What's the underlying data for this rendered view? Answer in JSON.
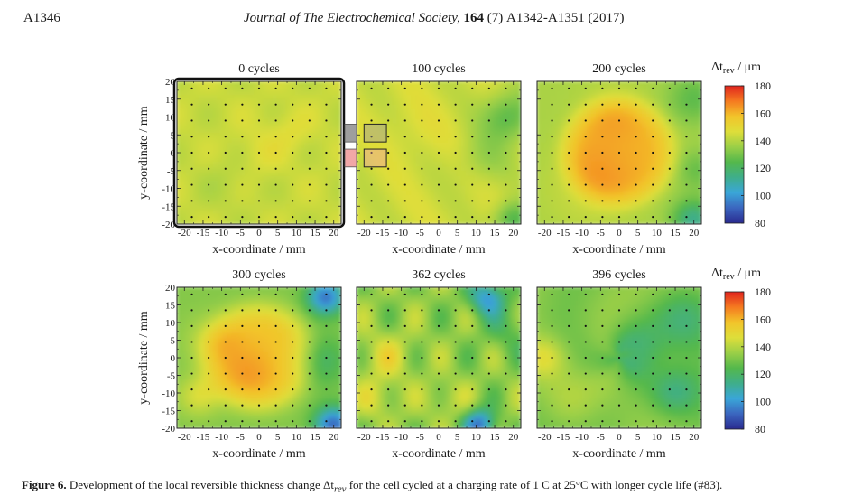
{
  "page": {
    "number": "A1346",
    "journal": "Journal of The Electrochemical Society,",
    "volume": "164",
    "issue": "(7)",
    "pages": "A1342-A1351 (2017)"
  },
  "figure": {
    "label": "Figure 6.",
    "caption_pre": "Development of the local reversible thickness change Δt",
    "caption_sub": "rev",
    "caption_post": " for the cell cycled at a charging rate of 1 C at 25°C with longer cycle life (#83)."
  },
  "chart_data": {
    "type": "heatmap",
    "panels": [
      {
        "title": "0 cycles",
        "state": 0
      },
      {
        "title": "100 cycles",
        "state": 1
      },
      {
        "title": "200 cycles",
        "state": 2
      },
      {
        "title": "300 cycles",
        "state": 3
      },
      {
        "title": "362 cycles",
        "state": 4
      },
      {
        "title": "396 cycles",
        "state": 5
      }
    ],
    "xlabel": "x-coordinate",
    "ylabel": "y-coordinate",
    "unit": "mm",
    "x_ticks": [
      "-20",
      "-15",
      "-10",
      "-5",
      "0",
      "5",
      "10",
      "15",
      "20"
    ],
    "y_ticks": [
      "20",
      "15",
      "10",
      "5",
      "0",
      "-5",
      "-10",
      "-15",
      "-20"
    ],
    "xlim": [
      -22,
      22
    ],
    "ylim": [
      -20,
      20
    ],
    "colorbar": {
      "label": "Δt",
      "label_sub": "rev",
      "label_unit": "μm",
      "ticks": [
        "180",
        "160",
        "140",
        "120",
        "100",
        "80"
      ],
      "range": [
        80,
        180
      ],
      "colors": [
        "#e0241e",
        "#f57a20",
        "#f2c42a",
        "#dede3a",
        "#9bcf47",
        "#54b84c",
        "#3fae8a",
        "#3aa6d8",
        "#3b66bf",
        "#2a2a8f"
      ]
    },
    "highlight_boxes": [
      {
        "color": "#9e9e9e",
        "x_range": [
          -20,
          -14
        ],
        "y_range": [
          3,
          8
        ]
      },
      {
        "color": "#f1a7a7",
        "x_range": [
          -20,
          -14
        ],
        "y_range": [
          -4,
          1
        ]
      }
    ]
  }
}
